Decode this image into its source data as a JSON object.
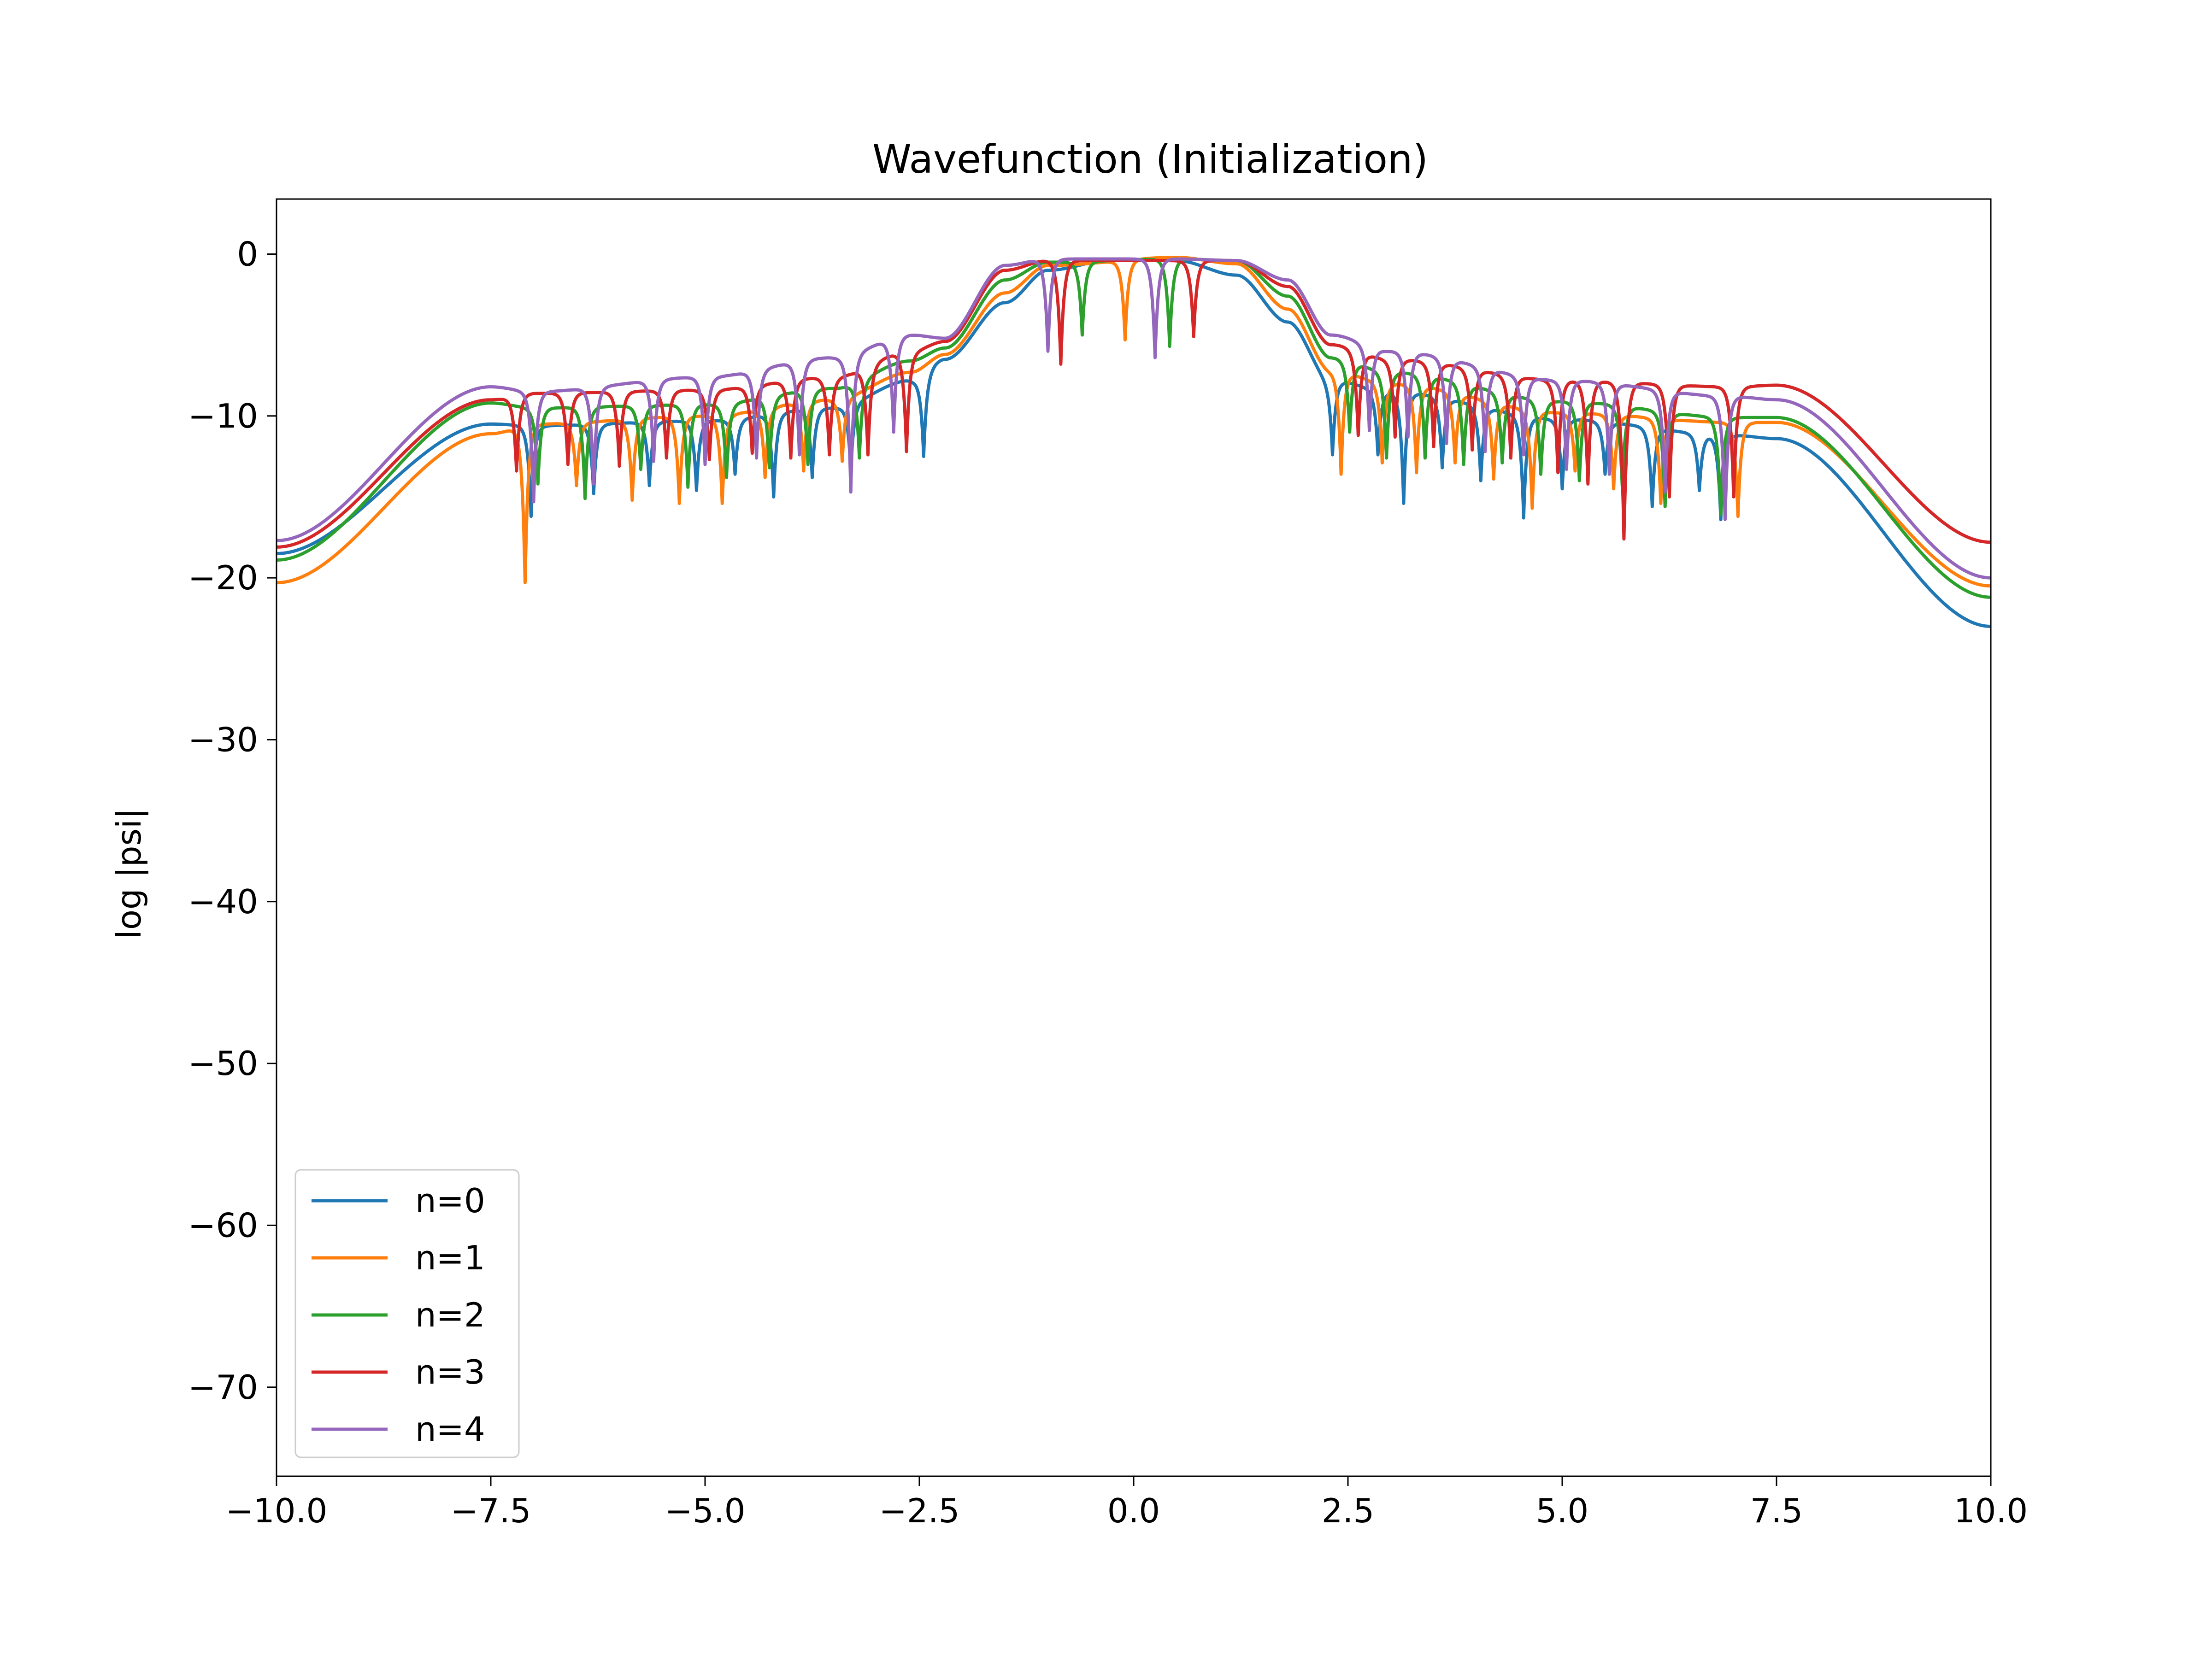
{
  "chart_data": {
    "type": "line",
    "title": "Wavefunction (Initialization)",
    "xlabel": "",
    "ylabel": "log |psi|",
    "xlim": [
      -10,
      10
    ],
    "ylim": [
      -75.5,
      3.4
    ],
    "x_ticks": [
      -10,
      -7.5,
      -5,
      -2.5,
      0,
      2.5,
      5,
      7.5,
      10
    ],
    "x_tick_labels": [
      "−10.0",
      "−7.5",
      "−5.0",
      "−2.5",
      "0.0",
      "2.5",
      "5.0",
      "7.5",
      "10.0"
    ],
    "y_ticks": [
      0,
      -10,
      -20,
      -30,
      -40,
      -50,
      -60,
      -70
    ],
    "y_tick_labels": [
      "0",
      "−10",
      "−20",
      "−30",
      "−40",
      "−50",
      "−60",
      "−70"
    ],
    "grid": false,
    "legend_position": "lower-left",
    "series": [
      {
        "name": "n=0",
        "color": "#1f77b4",
        "env": [
          [
            -10,
            -18.5
          ],
          [
            -7.5,
            -10.5
          ],
          [
            -7,
            -10.6
          ],
          [
            -5,
            -10.3
          ],
          [
            -3.5,
            -9.5
          ],
          [
            -2.6,
            -7.8
          ],
          [
            -2.2,
            -6.5
          ],
          [
            -1.5,
            -3.0
          ],
          [
            -1.0,
            -1.0
          ],
          [
            -0.2,
            -0.3
          ],
          [
            0.5,
            -0.4
          ],
          [
            1.2,
            -1.3
          ],
          [
            1.8,
            -4.2
          ],
          [
            2.3,
            -7.8
          ],
          [
            3.0,
            -8.5
          ],
          [
            5.0,
            -10.2
          ],
          [
            7.0,
            -11.2
          ],
          [
            7.5,
            -11.4
          ],
          [
            10,
            -23.0
          ]
        ],
        "dips": [
          [
            -7.03,
            -16.2
          ],
          [
            -6.3,
            -14.8
          ],
          [
            -5.65,
            -14.3
          ],
          [
            -5.1,
            -14.6
          ],
          [
            -4.65,
            -13.6
          ],
          [
            -4.2,
            -15.0
          ],
          [
            -3.75,
            -13.8
          ],
          [
            -3.3,
            -13.4
          ],
          [
            -2.45,
            -12.5
          ],
          [
            2.32,
            -12.4
          ],
          [
            2.85,
            -12.4
          ],
          [
            3.15,
            -15.4
          ],
          [
            3.6,
            -13.2
          ],
          [
            4.05,
            -14.0
          ],
          [
            4.55,
            -16.3
          ],
          [
            5.0,
            -14.5
          ],
          [
            5.5,
            -13.6
          ],
          [
            6.05,
            -15.6
          ],
          [
            6.6,
            -14.6
          ],
          [
            6.85,
            -16.4
          ]
        ]
      },
      {
        "name": "n=1",
        "color": "#ff7f0e",
        "env": [
          [
            -10,
            -20.3
          ],
          [
            -7.5,
            -11.1
          ],
          [
            -7,
            -10.5
          ],
          [
            -5,
            -10.0
          ],
          [
            -3.5,
            -9.0
          ],
          [
            -2.6,
            -7.3
          ],
          [
            -2.2,
            -6.2
          ],
          [
            -1.5,
            -2.4
          ],
          [
            -1.0,
            -0.7
          ],
          [
            0.5,
            -0.2
          ],
          [
            1.2,
            -0.6
          ],
          [
            1.8,
            -3.4
          ],
          [
            2.3,
            -7.2
          ],
          [
            3.0,
            -8.0
          ],
          [
            5.0,
            -9.8
          ],
          [
            7.0,
            -10.4
          ],
          [
            7.5,
            -10.4
          ],
          [
            10,
            -20.5
          ]
        ],
        "dips": [
          [
            -7.1,
            -20.3
          ],
          [
            -6.5,
            -14.3
          ],
          [
            -5.85,
            -15.2
          ],
          [
            -5.3,
            -15.4
          ],
          [
            -4.8,
            -15.4
          ],
          [
            -4.3,
            -13.8
          ],
          [
            -3.85,
            -13.4
          ],
          [
            -3.4,
            -12.8
          ],
          [
            -0.1,
            -5.3
          ],
          [
            2.42,
            -13.6
          ],
          [
            2.9,
            -12.9
          ],
          [
            3.3,
            -13.5
          ],
          [
            3.75,
            -12.9
          ],
          [
            4.2,
            -13.9
          ],
          [
            4.65,
            -15.7
          ],
          [
            5.15,
            -13.4
          ],
          [
            5.6,
            -14.5
          ],
          [
            6.15,
            -15.4
          ],
          [
            7.05,
            -16.2
          ]
        ]
      },
      {
        "name": "n=2",
        "color": "#2ca02c",
        "env": [
          [
            -10,
            -18.9
          ],
          [
            -7.5,
            -9.2
          ],
          [
            -7,
            -9.5
          ],
          [
            -5,
            -9.3
          ],
          [
            -3.5,
            -8.3
          ],
          [
            -2.6,
            -6.6
          ],
          [
            -2.2,
            -5.8
          ],
          [
            -1.5,
            -1.6
          ],
          [
            -1.0,
            -0.5
          ],
          [
            0.5,
            -0.3
          ],
          [
            1.2,
            -0.4
          ],
          [
            1.8,
            -2.6
          ],
          [
            2.3,
            -6.4
          ],
          [
            3.0,
            -7.3
          ],
          [
            5.0,
            -9.1
          ],
          [
            7.0,
            -10.1
          ],
          [
            7.5,
            -10.1
          ],
          [
            10,
            -21.2
          ]
        ],
        "dips": [
          [
            -6.95,
            -14.2
          ],
          [
            -6.4,
            -15.1
          ],
          [
            -5.75,
            -13.3
          ],
          [
            -5.2,
            -14.4
          ],
          [
            -4.75,
            -13.8
          ],
          [
            -4.25,
            -13.2
          ],
          [
            -3.8,
            -13.0
          ],
          [
            -3.2,
            -12.6
          ],
          [
            -0.6,
            -5.0
          ],
          [
            0.42,
            -5.7
          ],
          [
            2.52,
            -11.0
          ],
          [
            2.95,
            -12.6
          ],
          [
            3.4,
            -12.6
          ],
          [
            3.85,
            -13.0
          ],
          [
            4.3,
            -12.9
          ],
          [
            4.75,
            -13.6
          ],
          [
            5.2,
            -14.0
          ],
          [
            5.7,
            -14.3
          ],
          [
            6.2,
            -15.6
          ],
          [
            6.85,
            -16.1
          ]
        ]
      },
      {
        "name": "n=3",
        "color": "#d62728",
        "env": [
          [
            -10,
            -18.1
          ],
          [
            -7.5,
            -9.0
          ],
          [
            -7,
            -8.6
          ],
          [
            -5,
            -8.4
          ],
          [
            -3.5,
            -7.6
          ],
          [
            -2.6,
            -6.0
          ],
          [
            -2.2,
            -5.4
          ],
          [
            -1.5,
            -1.0
          ],
          [
            -1.0,
            -0.4
          ],
          [
            0.5,
            -0.4
          ],
          [
            1.2,
            -0.4
          ],
          [
            1.8,
            -2.0
          ],
          [
            2.3,
            -5.6
          ],
          [
            3.0,
            -6.5
          ],
          [
            5.0,
            -7.8
          ],
          [
            7.0,
            -8.2
          ],
          [
            7.5,
            -8.1
          ],
          [
            10,
            -17.8
          ]
        ],
        "dips": [
          [
            -7.2,
            -13.4
          ],
          [
            -6.6,
            -13.0
          ],
          [
            -6.0,
            -13.1
          ],
          [
            -5.45,
            -12.6
          ],
          [
            -4.95,
            -12.7
          ],
          [
            -4.45,
            -12.3
          ],
          [
            -4.0,
            -12.6
          ],
          [
            -3.55,
            -12.4
          ],
          [
            -3.1,
            -12.4
          ],
          [
            -2.65,
            -12.2
          ],
          [
            -0.85,
            -6.8
          ],
          [
            0.7,
            -5.1
          ],
          [
            2.62,
            -11.2
          ],
          [
            3.05,
            -11.3
          ],
          [
            3.5,
            -11.9
          ],
          [
            3.95,
            -12.1
          ],
          [
            4.4,
            -12.6
          ],
          [
            4.95,
            -13.5
          ],
          [
            5.3,
            -14.2
          ],
          [
            5.72,
            -17.6
          ],
          [
            6.25,
            -15.0
          ],
          [
            7.0,
            -15.0
          ]
        ]
      },
      {
        "name": "n=4",
        "color": "#9467bd",
        "env": [
          [
            -10,
            -17.7
          ],
          [
            -7.5,
            -8.2
          ],
          [
            -7,
            -8.5
          ],
          [
            -5,
            -7.6
          ],
          [
            -3.5,
            -6.4
          ],
          [
            -2.6,
            -5.0
          ],
          [
            -2.2,
            -5.2
          ],
          [
            -1.5,
            -0.7
          ],
          [
            -1.0,
            -0.3
          ],
          [
            0.5,
            -0.3
          ],
          [
            1.2,
            -0.4
          ],
          [
            1.8,
            -1.6
          ],
          [
            2.3,
            -5.0
          ],
          [
            3.0,
            -6.0
          ],
          [
            5.0,
            -7.8
          ],
          [
            7.0,
            -8.8
          ],
          [
            7.5,
            -9.0
          ],
          [
            10,
            -20.0
          ]
        ],
        "dips": [
          [
            -7.0,
            -15.3
          ],
          [
            -6.3,
            -14.2
          ],
          [
            -5.6,
            -12.8
          ],
          [
            -5.0,
            -13.0
          ],
          [
            -4.4,
            -12.6
          ],
          [
            -3.9,
            -12.4
          ],
          [
            -3.3,
            -14.7
          ],
          [
            -2.8,
            -11.0
          ],
          [
            -1.0,
            -6.0
          ],
          [
            0.25,
            -6.4
          ],
          [
            2.75,
            -10.9
          ],
          [
            3.2,
            -11.3
          ],
          [
            3.65,
            -11.7
          ],
          [
            4.1,
            -12.2
          ],
          [
            4.55,
            -12.4
          ],
          [
            5.05,
            -13.3
          ],
          [
            5.55,
            -13.6
          ],
          [
            6.2,
            -14.7
          ],
          [
            6.9,
            -16.4
          ]
        ]
      }
    ]
  }
}
